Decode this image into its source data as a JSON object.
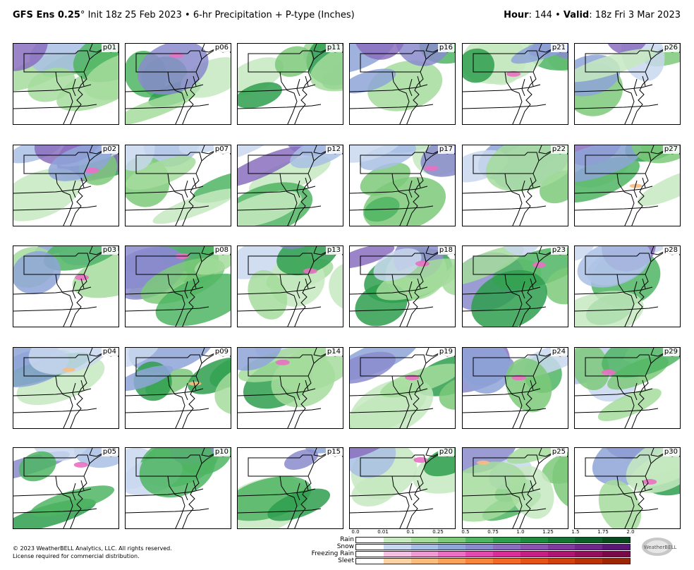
{
  "header": {
    "model": "GFS Ens 0.25",
    "degree": "°",
    "init": "Init 18z 25 Feb 2023",
    "sep1": "•",
    "product": "6-hr Precipitation + P-type (Inches)",
    "hour_label": "Hour",
    "hour_value": ": 144",
    "sep2": "•",
    "valid_label": "Valid",
    "valid_value": ": 18z Fri 3 Mar 2023"
  },
  "members": [
    "p01",
    "p06",
    "p11",
    "p16",
    "p21",
    "p26",
    "p02",
    "p07",
    "p12",
    "p17",
    "p22",
    "p27",
    "p03",
    "p08",
    "p13",
    "p18",
    "p23",
    "p28",
    "p04",
    "p09",
    "p14",
    "p19",
    "p24",
    "p29",
    "p05",
    "p10",
    "p15",
    "p20",
    "p25",
    "p30"
  ],
  "legend": {
    "ticks": [
      "0.0",
      "0.01",
      "0.1",
      "0.25",
      "0.5",
      "0.75",
      "1.0",
      "1.25",
      "1.5",
      "1.75",
      "2.0"
    ],
    "types": [
      {
        "name": "Rain",
        "colors": [
          "#ffffff",
          "#c6e9c0",
          "#a5dc9c",
          "#7cc97a",
          "#4fb563",
          "#2e9f4e",
          "#1d8a3f",
          "#147433",
          "#0c5e28",
          "#07481d",
          "#033314"
        ]
      },
      {
        "name": "Snow",
        "colors": [
          "#ffffff",
          "#c9d8ee",
          "#a9bfe4",
          "#8ea5d8",
          "#8a8bcc",
          "#8a6fbe",
          "#8a53af",
          "#7e3a9d",
          "#6e278a",
          "#5a1875",
          "#470b60"
        ]
      },
      {
        "name": "Freezing Rain",
        "colors": [
          "#ffffff",
          "#f5c1e3",
          "#f09ad4",
          "#ea70c3",
          "#e34aaf",
          "#d92d98",
          "#c51f84",
          "#ad1670",
          "#930e5c",
          "#790848",
          "#610336"
        ]
      },
      {
        "name": "Sleet",
        "colors": [
          "#ffffff",
          "#fcd3a6",
          "#fbbd7e",
          "#f9a259",
          "#f7863b",
          "#f26a23",
          "#e55414",
          "#d1420c",
          "#b83307",
          "#9e2603",
          "#841b01"
        ]
      }
    ]
  },
  "copyright": {
    "line1": "© 2023 WeatherBELL Analytics, LLC. All rights reserved.",
    "line2": "License required for commercial distribution."
  },
  "logo": {
    "text": "WeatherBELL"
  }
}
